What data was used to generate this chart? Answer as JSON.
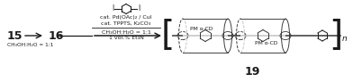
{
  "bg_color": "#ffffff",
  "fig_width": 3.92,
  "fig_height": 0.92,
  "dpi": 100,
  "text_color": "#1a1a1a",
  "label_15": "15",
  "label_16": "16",
  "label_19": "19",
  "solvent_below_15": "CH₃OH:H₂O = 1:1",
  "reagent_line1": "cat. Pd(OAc)₂ / CuI",
  "reagent_line2": "cat. TPPTS, K₂CO₃",
  "reagent_line3": "CH₃OH:H₂O = 1:1",
  "reagent_line4": "1 vol.% Et₃N",
  "repeat_unit": "n",
  "pm_alpha_cd": "PM α-CD",
  "wire_color": "#555555",
  "cd_color": "#333333"
}
